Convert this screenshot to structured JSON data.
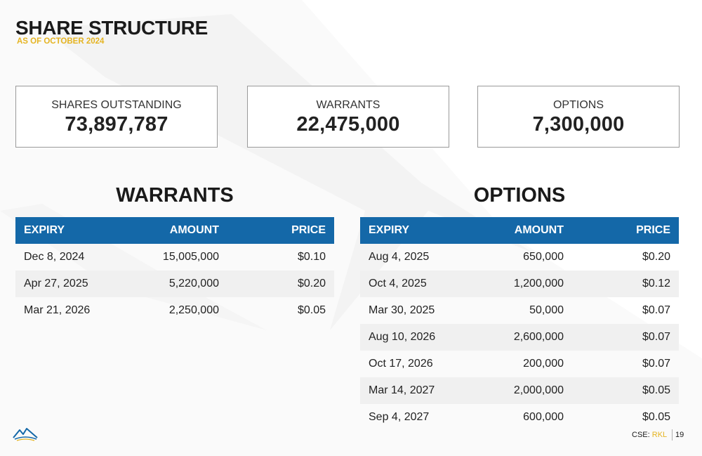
{
  "header": {
    "title": "SHARE STRUCTURE",
    "subtitle": "AS OF OCTOBER 2024"
  },
  "summary": [
    {
      "label": "SHARES OUTSTANDING",
      "value": "73,897,787"
    },
    {
      "label": "WARRANTS",
      "value": "22,475,000"
    },
    {
      "label": "OPTIONS",
      "value": "7,300,000"
    }
  ],
  "warrants": {
    "title": "WARRANTS",
    "columns": [
      "EXPIRY",
      "AMOUNT",
      "PRICE"
    ],
    "rows": [
      [
        "Dec 8, 2024",
        "15,005,000",
        "$0.10"
      ],
      [
        "Apr 27, 2025",
        "5,220,000",
        "$0.20"
      ],
      [
        "Mar 21, 2026",
        "2,250,000",
        "$0.05"
      ]
    ]
  },
  "options": {
    "title": "OPTIONS",
    "columns": [
      "EXPIRY",
      "AMOUNT",
      "PRICE"
    ],
    "rows": [
      [
        "Aug 4, 2025",
        "650,000",
        "$0.20"
      ],
      [
        "Oct 4, 2025",
        "1,200,000",
        "$0.12"
      ],
      [
        "Mar 30, 2025",
        "50,000",
        "$0.07"
      ],
      [
        "Aug 10, 2026",
        "2,600,000",
        "$0.07"
      ],
      [
        "Oct 17, 2026",
        "200,000",
        "$0.07"
      ],
      [
        "Mar 14, 2027",
        "2,000,000",
        "$0.05"
      ],
      [
        "Sep 4, 2027",
        "600,000",
        "$0.05"
      ]
    ]
  },
  "footer": {
    "exchange_label": "CSE:",
    "ticker": "RKL",
    "page_number": "19"
  },
  "colors": {
    "accent_gold": "#e5b422",
    "table_header_blue": "#1468a8",
    "logo_icon": "mountain-logo-icon"
  }
}
